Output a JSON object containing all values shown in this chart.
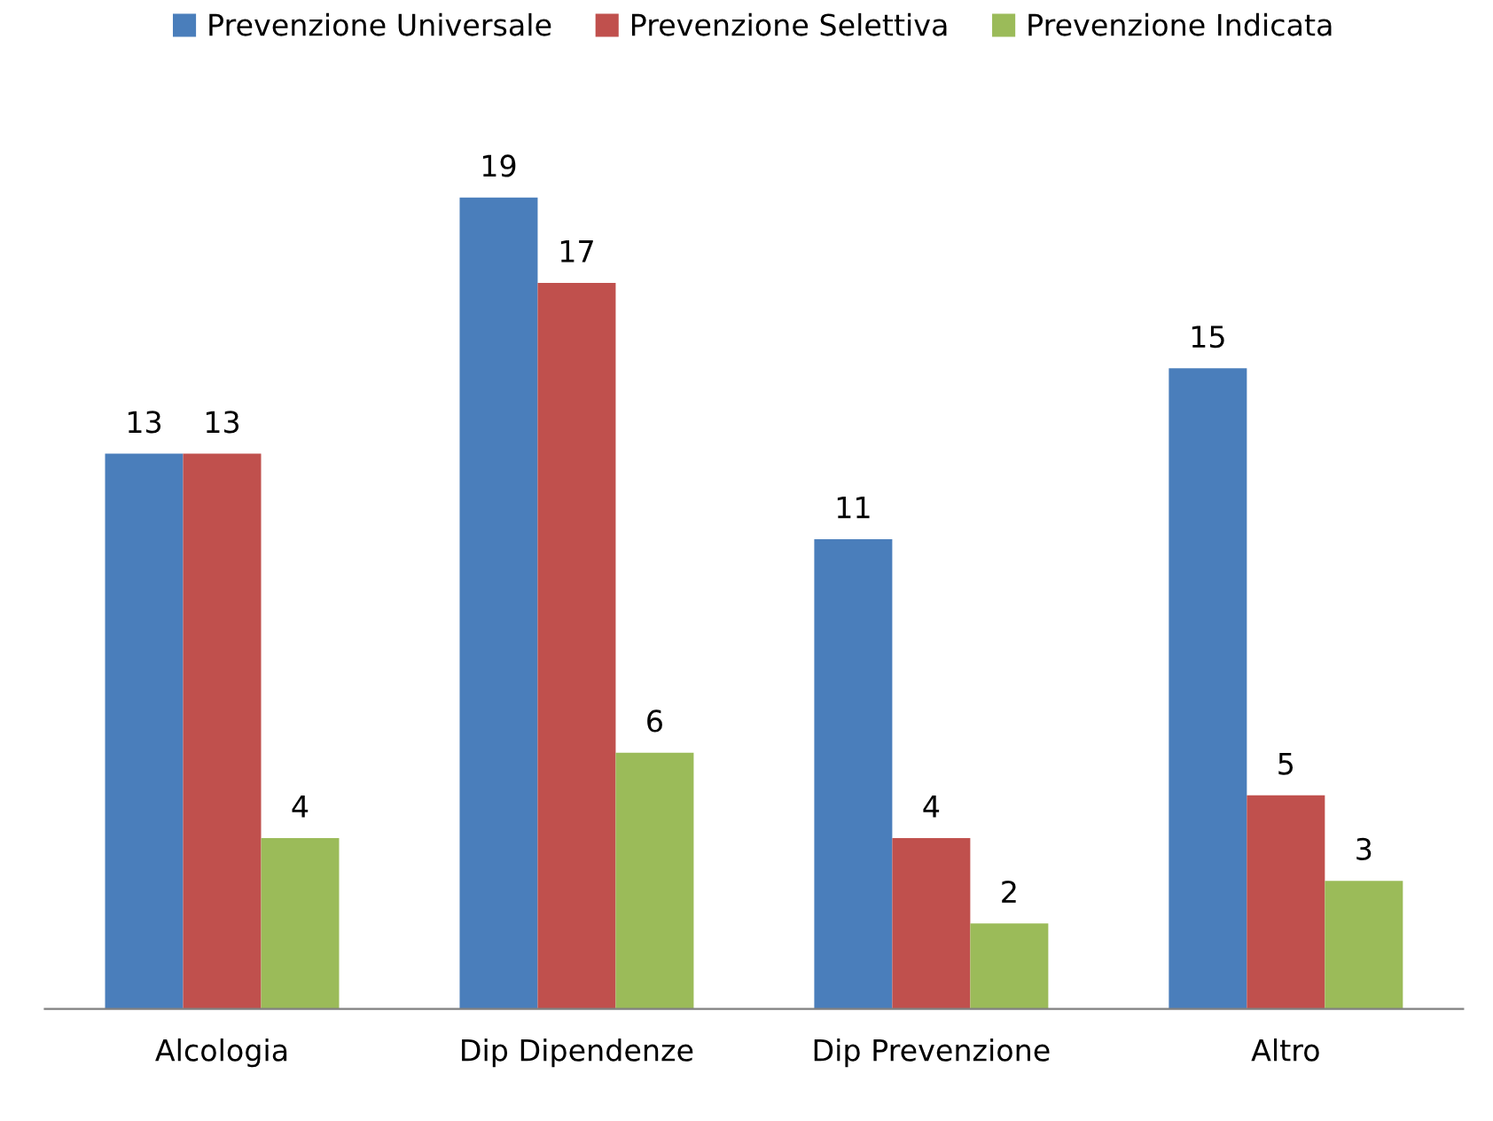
{
  "chart_data": {
    "type": "bar",
    "categories": [
      "Alcologia",
      "Dip Dipendenze",
      "Dip Prevenzione",
      "Altro"
    ],
    "series": [
      {
        "name": "Prevenzione Universale",
        "color": "#4a7ebb",
        "values": [
          13,
          19,
          11,
          15
        ]
      },
      {
        "name": "Prevenzione Selettiva",
        "color": "#c0504d",
        "values": [
          13,
          17,
          4,
          5
        ]
      },
      {
        "name": "Prevenzione Indicata",
        "color": "#9bbb59",
        "values": [
          4,
          6,
          2,
          3
        ]
      }
    ],
    "data_labels": true,
    "legend": "top",
    "grid": false,
    "tick_labels": "x"
  }
}
